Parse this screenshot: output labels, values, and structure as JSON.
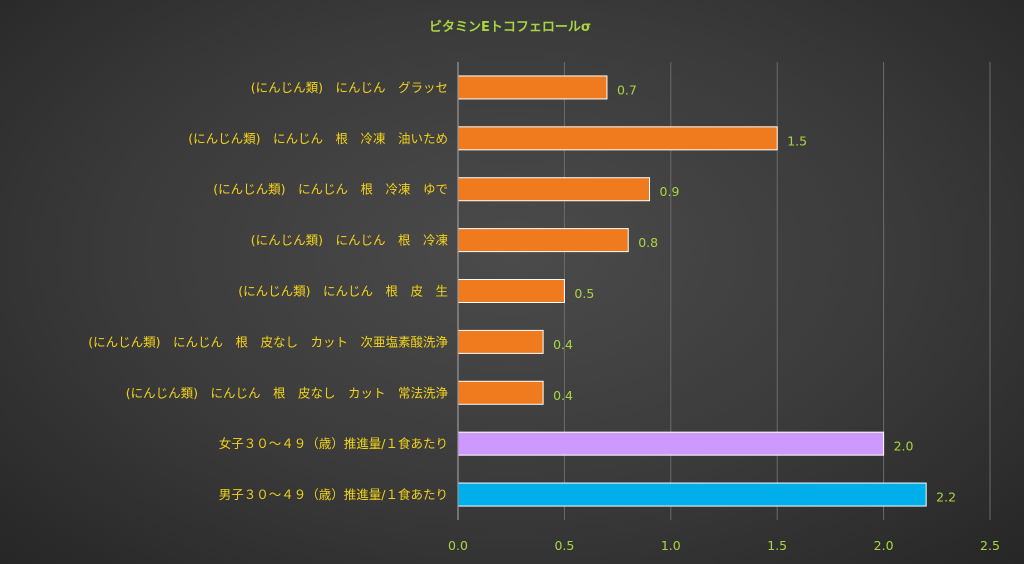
{
  "chart_data": {
    "type": "bar",
    "orientation": "horizontal",
    "title": "ビタミンEトコフェロールσ",
    "categories": [
      "(にんじん類)　にんじん　グラッセ",
      "(にんじん類)　にんじん　根　冷凍　油いため",
      "(にんじん類)　にんじん　根　冷凍　ゆで",
      "(にんじん類)　にんじん　根　冷凍",
      "(にんじん類)　にんじん　根　皮　生",
      "(にんじん類)　にんじん　根　皮なし　カット　次亜塩素酸洗浄",
      "(にんじん類)　にんじん　根　皮なし　カット　常法洗浄",
      "女子３０～４９（歳）推進量/１食あたり",
      "男子３０～４９（歳）推進量/１食あたり"
    ],
    "values": [
      0.7,
      1.5,
      0.9,
      0.8,
      0.5,
      0.4,
      0.4,
      2.0,
      2.2
    ],
    "value_labels": [
      "0.7",
      "1.5",
      "0.9",
      "0.8",
      "0.5",
      "0.4",
      "0.4",
      "2.0",
      "2.2"
    ],
    "bar_colors": [
      "#f07b1e",
      "#f07b1e",
      "#f07b1e",
      "#f07b1e",
      "#f07b1e",
      "#f07b1e",
      "#f07b1e",
      "#cc99ff",
      "#00aeeb"
    ],
    "xlim": [
      0,
      2.5
    ],
    "xticks": [
      "0.0",
      "0.5",
      "1.0",
      "1.5",
      "2.0",
      "2.5"
    ],
    "xtick_values": [
      0,
      0.5,
      1.0,
      1.5,
      2.0,
      2.5
    ],
    "grid": true,
    "legend": "none"
  }
}
